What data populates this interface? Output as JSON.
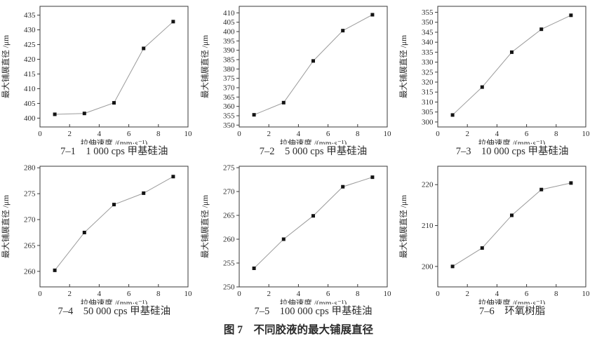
{
  "figure": {
    "caption": "图 7　不同胶液的最大铺展直径"
  },
  "style": {
    "axis_color": "#3a3a3a",
    "line_color": "#9b9b9b",
    "marker_color": "#141414",
    "text_color": "#2b2b2b",
    "background": "#ffffff"
  },
  "axis_defaults": {
    "xlabel": "拉伸速度 /(mm·s⁻¹)",
    "ylabel": "最大铺展直径 /μm",
    "xlim": [
      0,
      10
    ],
    "xticks": [
      0,
      2,
      4,
      6,
      8,
      10
    ]
  },
  "chart_data": [
    {
      "id": "7-1",
      "type": "line",
      "subtitle": "7–1　1 000 cps 甲基硅油",
      "xlabel": "拉伸速度 /(mm·s⁻¹)",
      "ylabel": "最大铺展直径 /μm",
      "x": [
        1,
        3,
        5,
        7,
        9
      ],
      "y": [
        401.3,
        401.6,
        405.2,
        423.7,
        432.8
      ],
      "xlim": [
        0,
        10
      ],
      "ylim": [
        397,
        438
      ],
      "xticks": [
        0,
        2,
        4,
        6,
        8,
        10
      ],
      "yticks": [
        400,
        405,
        410,
        415,
        420,
        425,
        430,
        435
      ],
      "grid": false,
      "legend": "none",
      "marker": "square"
    },
    {
      "id": "7-2",
      "type": "line",
      "subtitle": "7–2　5 000 cps 甲基硅油",
      "xlabel": "拉伸速度 /(mm·s⁻¹)",
      "ylabel": "最大铺展直径 /μm",
      "x": [
        1,
        3,
        5,
        7,
        9
      ],
      "y": [
        355.5,
        362.0,
        384.3,
        400.5,
        409.0
      ],
      "xlim": [
        0,
        10
      ],
      "ylim": [
        349,
        413.5
      ],
      "xticks": [
        0,
        2,
        4,
        6,
        8,
        10
      ],
      "yticks": [
        350,
        355,
        360,
        365,
        370,
        375,
        380,
        385,
        390,
        395,
        400,
        405,
        410
      ],
      "grid": false,
      "legend": "none",
      "marker": "square"
    },
    {
      "id": "7-3",
      "type": "line",
      "subtitle": "7–3　10 000 cps 甲基硅油",
      "xlabel": "拉伸速度 /(mm·s⁻¹)",
      "ylabel": "最大铺展直径 /μm",
      "x": [
        1,
        3,
        5,
        7,
        9
      ],
      "y": [
        303.5,
        317.5,
        335.0,
        346.5,
        353.5
      ],
      "xlim": [
        0,
        10
      ],
      "ylim": [
        297.5,
        358
      ],
      "xticks": [
        0,
        2,
        4,
        6,
        8,
        10
      ],
      "yticks": [
        300,
        305,
        310,
        315,
        320,
        325,
        330,
        335,
        340,
        345,
        350,
        355
      ],
      "grid": false,
      "legend": "none",
      "marker": "square"
    },
    {
      "id": "7-4",
      "type": "line",
      "subtitle": "7–4　50 000 cps 甲基硅油",
      "xlabel": "拉伸速度 /(mm·s⁻¹)",
      "ylabel": "最大铺展直径 /μm",
      "x": [
        1,
        3,
        5,
        7,
        9
      ],
      "y": [
        260.2,
        267.5,
        272.9,
        275.1,
        278.3
      ],
      "xlim": [
        0,
        10
      ],
      "ylim": [
        257,
        280.3
      ],
      "xticks": [
        0,
        2,
        4,
        6,
        8,
        10
      ],
      "yticks": [
        260,
        265,
        270,
        275,
        280
      ],
      "grid": false,
      "legend": "none",
      "marker": "square"
    },
    {
      "id": "7-5",
      "type": "line",
      "subtitle": "7–5　100 000 cps 甲基硅油",
      "xlabel": "拉伸速度 /(mm·s⁻¹)",
      "ylabel": "最大铺展直径 /μm",
      "x": [
        1,
        3,
        5,
        7,
        9
      ],
      "y": [
        253.9,
        260.0,
        264.9,
        271.0,
        273.0
      ],
      "xlim": [
        0,
        10
      ],
      "ylim": [
        250,
        275.3
      ],
      "xticks": [
        0,
        2,
        4,
        6,
        8,
        10
      ],
      "yticks": [
        250,
        255,
        260,
        265,
        270,
        275
      ],
      "grid": false,
      "legend": "none",
      "marker": "square"
    },
    {
      "id": "7-6",
      "type": "line",
      "subtitle": "7–6　环氧树脂",
      "xlabel": "拉伸速度 /(mm·s⁻¹)",
      "ylabel": "最大铺展直径 /μm",
      "x": [
        1,
        3,
        5,
        7,
        9
      ],
      "y": [
        200.0,
        204.5,
        212.5,
        218.8,
        220.4
      ],
      "xlim": [
        0,
        10
      ],
      "ylim": [
        195,
        224.5
      ],
      "xticks": [
        0,
        2,
        4,
        6,
        8,
        10
      ],
      "yticks": [
        200,
        210,
        220
      ],
      "grid": false,
      "legend": "none",
      "marker": "square"
    }
  ]
}
